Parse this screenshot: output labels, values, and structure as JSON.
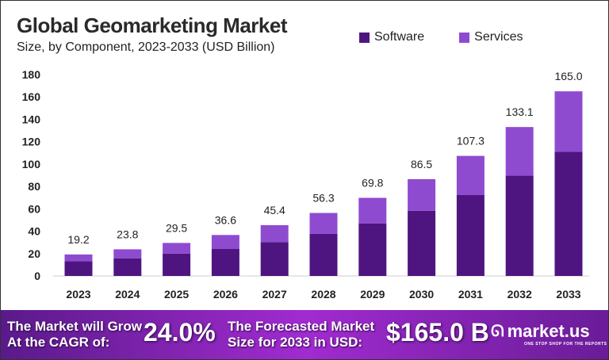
{
  "chart_data": {
    "type": "bar",
    "stacked": true,
    "title": "Global Geomarketing Market",
    "subtitle": "Size, by Component, 2023-2033 (USD Billion)",
    "categories": [
      "2023",
      "2024",
      "2025",
      "2026",
      "2027",
      "2028",
      "2029",
      "2030",
      "2031",
      "2032",
      "2033"
    ],
    "series": [
      {
        "name": "Software",
        "color": "#4e1580",
        "values": [
          13.2,
          15.8,
          19.9,
          24.1,
          30.3,
          37.6,
          47.0,
          58.2,
          72.3,
          89.6,
          111.1
        ]
      },
      {
        "name": "Services",
        "color": "#8f4bd0",
        "values": [
          6.0,
          8.0,
          9.6,
          12.5,
          15.1,
          18.7,
          22.8,
          28.3,
          35.0,
          43.5,
          53.9
        ]
      }
    ],
    "totals": [
      "19.2",
      "23.8",
      "29.5",
      "36.6",
      "45.4",
      "56.3",
      "69.8",
      "86.5",
      "107.3",
      "133.1",
      "165.0"
    ],
    "yticks": [
      0,
      20,
      40,
      60,
      80,
      100,
      120,
      140,
      160,
      180
    ],
    "ylim": [
      0,
      180
    ],
    "grid": false,
    "legend": "top-right"
  },
  "banner": {
    "cagr_label_1": "The Market will Grow",
    "cagr_label_2": "At the CAGR of:",
    "cagr_value": "24.0%",
    "forecast_label_1": "The Forecasted Market",
    "forecast_label_2": "Size for 2033 in USD:",
    "forecast_value": "$165.0 B",
    "brand": "market.us",
    "tagline": "ONE STOP SHOP FOR THE REPORTS"
  }
}
